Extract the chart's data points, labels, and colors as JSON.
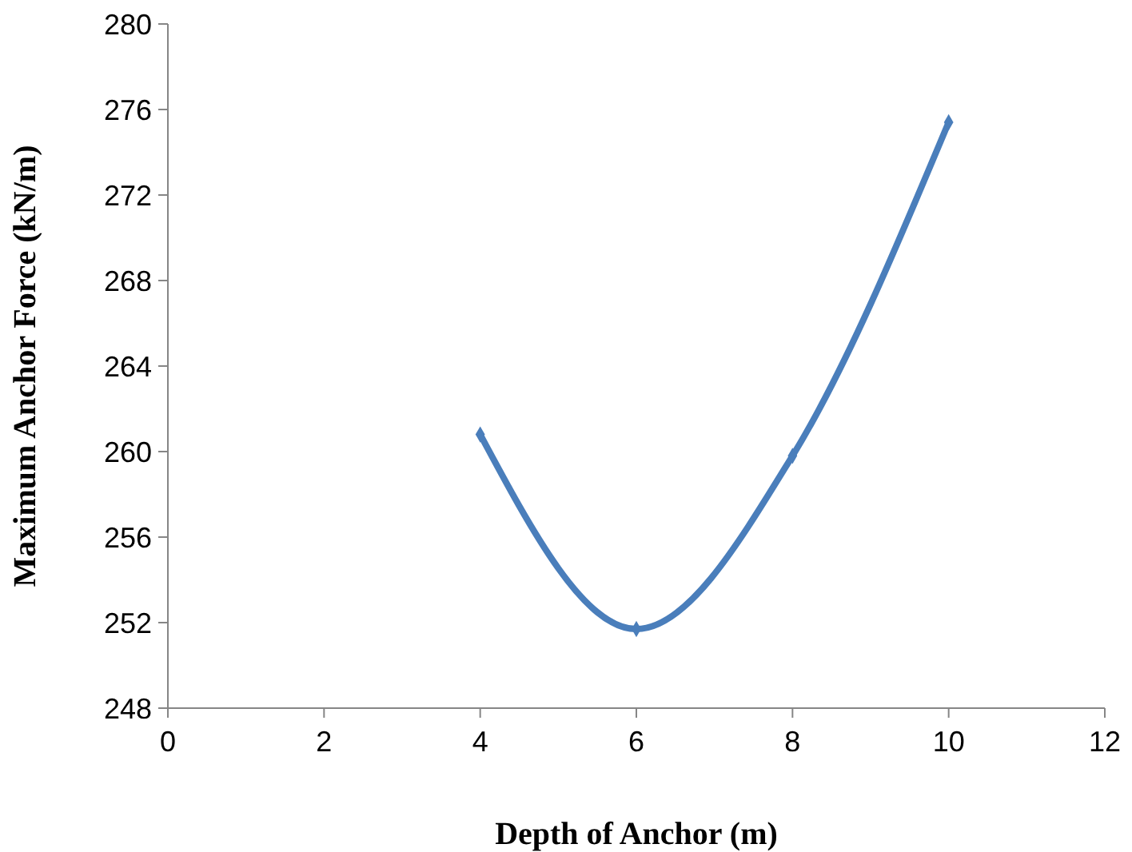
{
  "chart_data": {
    "type": "line",
    "xlabel": "Depth of Anchor (m)",
    "ylabel": "Maximum Anchor Force (kN/m)",
    "x": [
      4,
      6,
      8,
      10
    ],
    "series": [
      {
        "color": "#4a7ebb",
        "values": [
          260.8,
          251.7,
          259.8,
          275.4
        ]
      }
    ],
    "xlim": [
      0,
      12
    ],
    "xticks": [
      0,
      2,
      4,
      6,
      8,
      10,
      12
    ],
    "ylim": [
      248,
      280
    ],
    "yticks": [
      248,
      252,
      256,
      260,
      264,
      268,
      272,
      276,
      280
    ],
    "grid": false,
    "marker": "diamond",
    "line_style": "solid"
  }
}
